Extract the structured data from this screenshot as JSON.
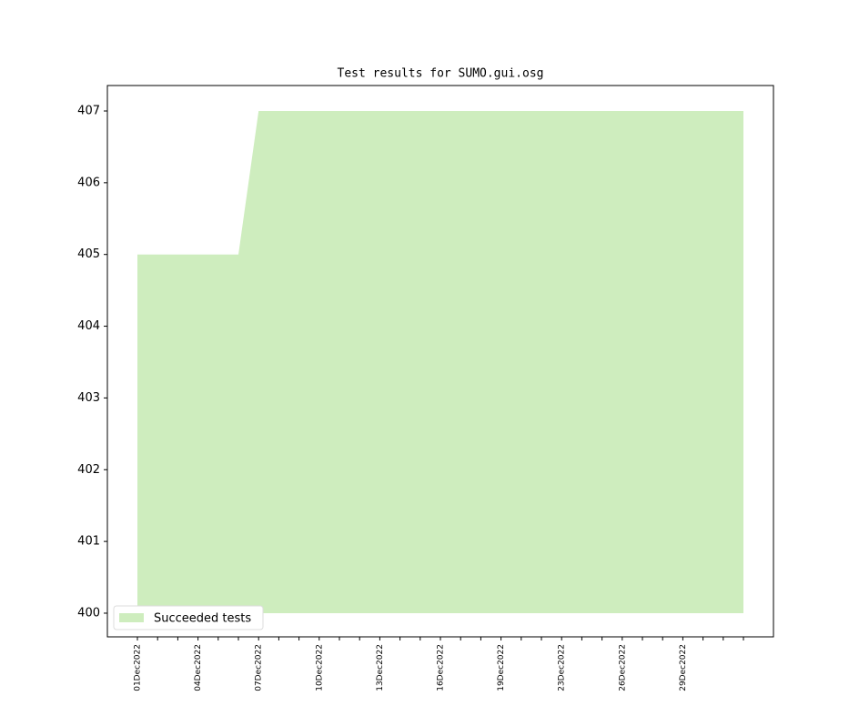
{
  "chart_data": {
    "type": "area",
    "title": "Test results for SUMO.gui.osg",
    "categories": [
      "01Dec2022",
      null,
      null,
      "04Dec2022",
      null,
      null,
      "07Dec2022",
      null,
      null,
      "10Dec2022",
      null,
      null,
      "13Dec2022",
      null,
      null,
      "16Dec2022",
      null,
      null,
      "19Dec2022",
      null,
      null,
      "23Dec2022",
      null,
      null,
      "26Dec2022",
      null,
      null,
      "29Dec2022",
      null,
      null,
      null
    ],
    "series": [
      {
        "name": "Succeeded tests",
        "color": "#ceedbe",
        "values": [
          405,
          405,
          405,
          405,
          405,
          405,
          407,
          407,
          407,
          407,
          407,
          407,
          407,
          407,
          407,
          407,
          407,
          407,
          407,
          407,
          407,
          407,
          407,
          407,
          407,
          407,
          407,
          407,
          407,
          407,
          407
        ]
      }
    ],
    "ylim": [
      399.67,
      407.355
    ],
    "yticks": [
      400,
      401,
      402,
      403,
      404,
      405,
      406,
      407
    ],
    "grid": false,
    "legend": "lower left"
  }
}
